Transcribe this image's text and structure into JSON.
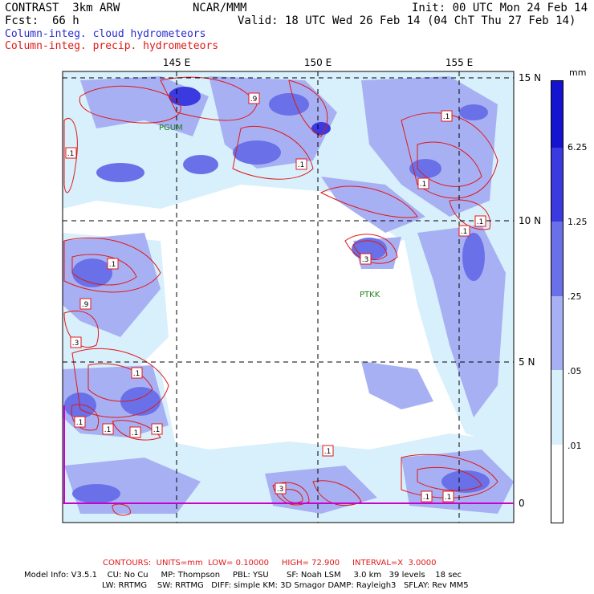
{
  "header": {
    "product": "CONTRAST  3km ARW",
    "center": "NCAR/MMM",
    "init": "Init: 00 UTC Mon 24 Feb 14",
    "fcst_label": "Fcst:",
    "fcst_value": "66 h",
    "valid": "Valid: 18 UTC Wed 26 Feb 14 (04 ChT Thu 27 Feb 14)",
    "field_cloud": "Column-integ. cloud hydrometeors",
    "field_precip": "Column-integ. precip. hydrometeors"
  },
  "map": {
    "lon_labels": [
      "145 E",
      "150 E",
      "155 E"
    ],
    "lat_labels": [
      "15 N",
      "10 N",
      "5 N",
      "0"
    ],
    "stations": [
      "PGUM",
      "PTKK"
    ],
    "contour_labels": [
      ".1",
      ".9",
      ".1",
      ".1",
      ".1",
      ".1",
      ".9",
      ".1",
      ".1",
      ".9",
      ".3",
      ".1",
      ".1",
      ".1",
      ".3",
      ".3",
      ".1",
      ".1",
      ".1",
      ".1",
      ".1"
    ],
    "colors": {
      "cloud_light": "#c8e6f8",
      "cloud_mid": "#a8b0f4",
      "cloud_dark": "#6a70e8",
      "precip_contour": "#e01818",
      "grid": "#000000",
      "equator": "#cc00cc"
    }
  },
  "legend": {
    "units": "mm",
    "levels": [
      "6.25",
      "1.25",
      ".25",
      ".05",
      ".01"
    ],
    "colors": [
      "#1414d0",
      "#3a3ae0",
      "#6a70e8",
      "#a8b0f4",
      "#d8f0fc",
      "#ffffff"
    ]
  },
  "footer": {
    "contours": "CONTOURS:  UNITS=mm  LOW= 0.10000     HIGH= 72.900     INTERVAL=X  3.0000",
    "model_line1": "Model Info: V3.5.1    CU: No Cu     MP: Thompson     PBL: YSU       SF: Noah LSM     3.0 km   39 levels    18 sec",
    "model_line2": "LW: RRTMG    SW: RRTMG   DIFF: simple KM: 3D Smagor DAMP: Rayleigh3   SFLAY: Rev MM5"
  }
}
